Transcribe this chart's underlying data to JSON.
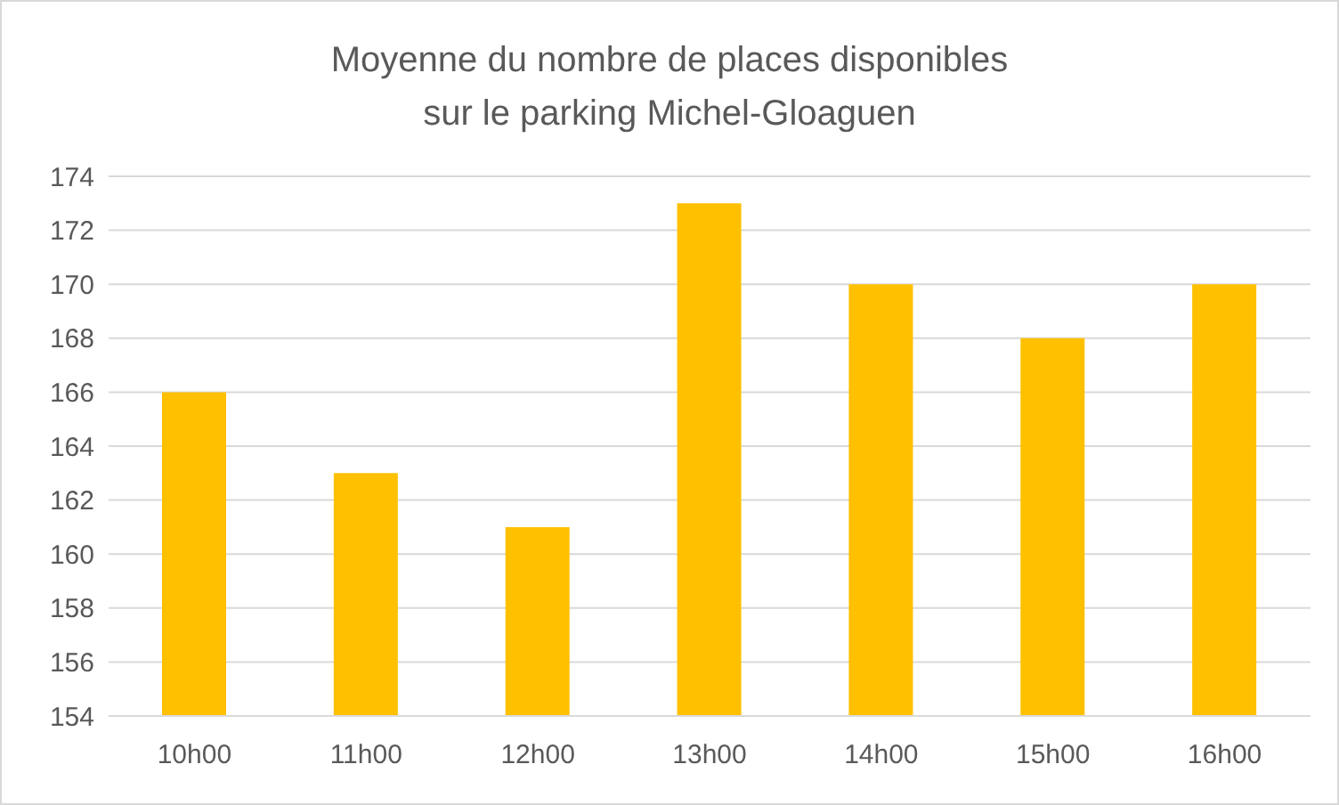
{
  "chart_data": {
    "type": "bar",
    "title": "Moyenne du nombre de places disponibles\nsur le parking Michel-Gloaguen",
    "categories": [
      "10h00",
      "11h00",
      "12h00",
      "13h00",
      "14h00",
      "15h00",
      "16h00"
    ],
    "values": [
      166,
      163,
      161,
      173,
      170,
      168,
      170
    ],
    "color": "#ffc000",
    "ylim": [
      154,
      174
    ],
    "yticks": [
      154,
      156,
      158,
      160,
      162,
      164,
      166,
      168,
      170,
      172,
      174
    ],
    "grid": "y"
  }
}
